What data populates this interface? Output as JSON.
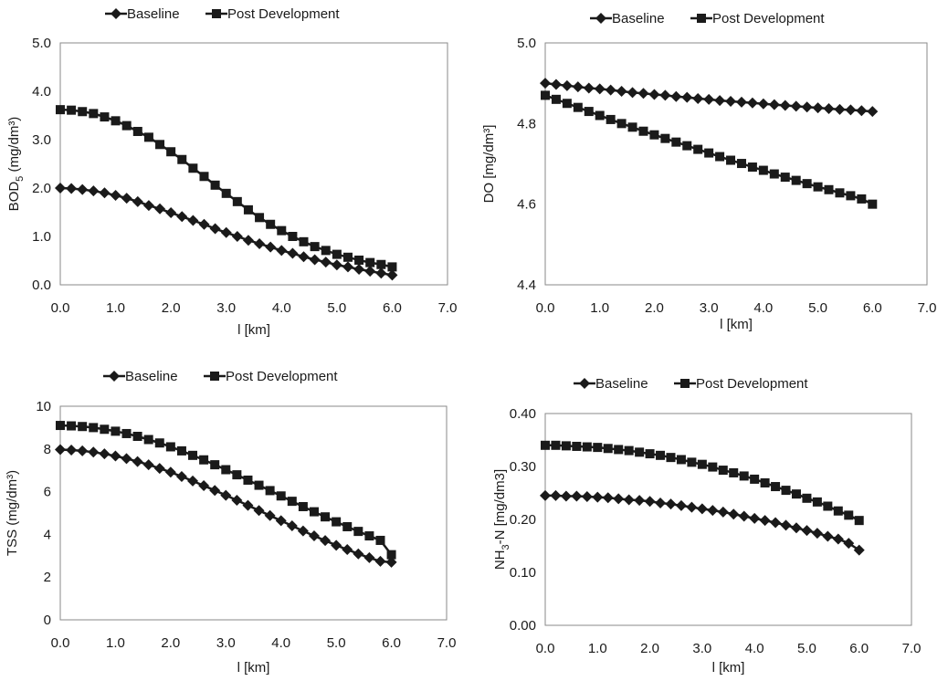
{
  "legend": {
    "baseline": "Baseline",
    "post": "Post Development"
  },
  "chart_data": [
    {
      "type": "line",
      "xlabel": "l [km]",
      "ylabel": "BOD5 (mg/dm³)",
      "ylabel_main": "BOD",
      "ylabel_sub": "5",
      "ylabel_rest": " (mg/dm³)",
      "xlim": [
        0,
        7
      ],
      "ylim": [
        0,
        5
      ],
      "xticks": [
        "0.0",
        "1.0",
        "2.0",
        "3.0",
        "4.0",
        "5.0",
        "6.0",
        "7.0"
      ],
      "yticks": [
        "0.0",
        "1.0",
        "2.0",
        "3.0",
        "4.0",
        "5.0"
      ],
      "series": [
        {
          "name": "Baseline",
          "marker": "diamond",
          "x": [
            0,
            0.2,
            0.4,
            0.6,
            0.8,
            1.0,
            1.2,
            1.4,
            1.6,
            1.8,
            2.0,
            2.2,
            2.4,
            2.6,
            2.8,
            3.0,
            3.2,
            3.4,
            3.6,
            3.8,
            4.0,
            4.2,
            4.4,
            4.6,
            4.8,
            5.0,
            5.2,
            5.4,
            5.6,
            5.8,
            6.0
          ],
          "y": [
            2.0,
            1.99,
            1.97,
            1.94,
            1.9,
            1.85,
            1.79,
            1.72,
            1.64,
            1.57,
            1.49,
            1.41,
            1.33,
            1.25,
            1.16,
            1.08,
            1.0,
            0.92,
            0.85,
            0.78,
            0.71,
            0.65,
            0.58,
            0.52,
            0.47,
            0.41,
            0.37,
            0.32,
            0.28,
            0.24,
            0.2
          ]
        },
        {
          "name": "Post Development",
          "marker": "square",
          "x": [
            0,
            0.2,
            0.4,
            0.6,
            0.8,
            1.0,
            1.2,
            1.4,
            1.6,
            1.8,
            2.0,
            2.2,
            2.4,
            2.6,
            2.8,
            3.0,
            3.2,
            3.4,
            3.6,
            3.8,
            4.0,
            4.2,
            4.4,
            4.6,
            4.8,
            5.0,
            5.2,
            5.4,
            5.6,
            5.8,
            6.0
          ],
          "y": [
            3.62,
            3.61,
            3.58,
            3.54,
            3.47,
            3.39,
            3.29,
            3.17,
            3.05,
            2.9,
            2.75,
            2.59,
            2.41,
            2.24,
            2.06,
            1.89,
            1.72,
            1.55,
            1.39,
            1.25,
            1.12,
            1.0,
            0.89,
            0.79,
            0.71,
            0.63,
            0.57,
            0.51,
            0.46,
            0.42,
            0.37
          ]
        }
      ]
    },
    {
      "type": "line",
      "xlabel": "l [km]",
      "ylabel": "DO [mg/dm³]",
      "ylabel_main": "DO [mg/dm³]",
      "ylabel_sub": "",
      "ylabel_rest": "",
      "xlim": [
        0,
        7
      ],
      "ylim": [
        4.4,
        5.0
      ],
      "xticks": [
        "0.0",
        "1.0",
        "2.0",
        "3.0",
        "4.0",
        "5.0",
        "6.0",
        "7.0"
      ],
      "yticks": [
        "4.4",
        "4.6",
        "4.8",
        "5.0"
      ],
      "series": [
        {
          "name": "Baseline",
          "marker": "diamond",
          "x": [
            0,
            0.2,
            0.4,
            0.6,
            0.8,
            1.0,
            1.2,
            1.4,
            1.6,
            1.8,
            2.0,
            2.2,
            2.4,
            2.6,
            2.8,
            3.0,
            3.2,
            3.4,
            3.6,
            3.8,
            4.0,
            4.2,
            4.4,
            4.6,
            4.8,
            5.0,
            5.2,
            5.4,
            5.6,
            5.8,
            6.0
          ],
          "y": [
            4.9,
            4.897,
            4.894,
            4.891,
            4.888,
            4.886,
            4.883,
            4.88,
            4.877,
            4.875,
            4.872,
            4.87,
            4.867,
            4.865,
            4.862,
            4.86,
            4.857,
            4.855,
            4.853,
            4.851,
            4.849,
            4.847,
            4.845,
            4.843,
            4.841,
            4.839,
            4.837,
            4.835,
            4.834,
            4.832,
            4.83
          ]
        },
        {
          "name": "Post Development",
          "marker": "square",
          "x": [
            0,
            0.2,
            0.4,
            0.6,
            0.8,
            1.0,
            1.2,
            1.4,
            1.6,
            1.8,
            2.0,
            2.2,
            2.4,
            2.6,
            2.8,
            3.0,
            3.2,
            3.4,
            3.6,
            3.8,
            4.0,
            4.2,
            4.4,
            4.6,
            4.8,
            5.0,
            5.2,
            5.4,
            5.6,
            5.8,
            6.0
          ],
          "y": [
            4.87,
            4.86,
            4.85,
            4.84,
            4.83,
            4.82,
            4.81,
            4.8,
            4.791,
            4.781,
            4.772,
            4.763,
            4.754,
            4.745,
            4.736,
            4.727,
            4.718,
            4.709,
            4.701,
            4.692,
            4.684,
            4.675,
            4.667,
            4.659,
            4.651,
            4.643,
            4.636,
            4.628,
            4.621,
            4.613,
            4.6
          ]
        }
      ]
    },
    {
      "type": "line",
      "xlabel": "l [km]",
      "ylabel": "TSS (mg/dm³)",
      "ylabel_main": "TSS (mg/dm³)",
      "ylabel_sub": "",
      "ylabel_rest": "",
      "xlim": [
        0,
        7
      ],
      "ylim": [
        0,
        10
      ],
      "xticks": [
        "0.0",
        "1.0",
        "2.0",
        "3.0",
        "4.0",
        "5.0",
        "6.0",
        "7.0"
      ],
      "yticks": [
        "0",
        "2",
        "4",
        "6",
        "8",
        "10"
      ],
      "series": [
        {
          "name": "Baseline",
          "marker": "diamond",
          "x": [
            0,
            0.2,
            0.4,
            0.6,
            0.8,
            1.0,
            1.2,
            1.4,
            1.6,
            1.8,
            2.0,
            2.2,
            2.4,
            2.6,
            2.8,
            3.0,
            3.2,
            3.4,
            3.6,
            3.8,
            4.0,
            4.2,
            4.4,
            4.6,
            4.8,
            5.0,
            5.2,
            5.4,
            5.6,
            5.8,
            6.0
          ],
          "y": [
            7.97,
            7.95,
            7.91,
            7.85,
            7.77,
            7.67,
            7.55,
            7.41,
            7.26,
            7.09,
            6.91,
            6.71,
            6.5,
            6.28,
            6.06,
            5.83,
            5.6,
            5.36,
            5.12,
            4.88,
            4.64,
            4.4,
            4.16,
            3.93,
            3.71,
            3.49,
            3.29,
            3.09,
            2.91,
            2.74,
            2.7
          ]
        },
        {
          "name": "Post Development",
          "marker": "square",
          "x": [
            0,
            0.2,
            0.4,
            0.6,
            0.8,
            1.0,
            1.2,
            1.4,
            1.6,
            1.8,
            2.0,
            2.2,
            2.4,
            2.6,
            2.8,
            3.0,
            3.2,
            3.4,
            3.6,
            3.8,
            4.0,
            4.2,
            4.4,
            4.6,
            4.8,
            5.0,
            5.2,
            5.4,
            5.6,
            5.8,
            6.0
          ],
          "y": [
            9.1,
            9.08,
            9.05,
            9.0,
            8.92,
            8.83,
            8.72,
            8.59,
            8.44,
            8.28,
            8.1,
            7.91,
            7.7,
            7.49,
            7.26,
            7.03,
            6.79,
            6.54,
            6.3,
            6.05,
            5.8,
            5.55,
            5.3,
            5.06,
            4.82,
            4.59,
            4.36,
            4.14,
            3.93,
            3.72,
            3.05
          ]
        }
      ]
    },
    {
      "type": "line",
      "xlabel": "l [km]",
      "ylabel": "NH3-N [mg/dm3]",
      "ylabel_main": "NH",
      "ylabel_sub": "3",
      "ylabel_rest": "-N [mg/dm3]",
      "xlim": [
        0,
        7
      ],
      "ylim": [
        0,
        0.4
      ],
      "xticks": [
        "0.0",
        "1.0",
        "2.0",
        "3.0",
        "4.0",
        "5.0",
        "6.0",
        "7.0"
      ],
      "yticks": [
        "0.00",
        "0.10",
        "0.20",
        "0.30",
        "0.40"
      ],
      "series": [
        {
          "name": "Baseline",
          "marker": "diamond",
          "x": [
            0,
            0.2,
            0.4,
            0.6,
            0.8,
            1.0,
            1.2,
            1.4,
            1.6,
            1.8,
            2.0,
            2.2,
            2.4,
            2.6,
            2.8,
            3.0,
            3.2,
            3.4,
            3.6,
            3.8,
            4.0,
            4.2,
            4.4,
            4.6,
            4.8,
            5.0,
            5.2,
            5.4,
            5.6,
            5.8,
            6.0
          ],
          "y": [
            0.245,
            0.245,
            0.244,
            0.244,
            0.243,
            0.242,
            0.241,
            0.239,
            0.237,
            0.236,
            0.234,
            0.231,
            0.229,
            0.226,
            0.223,
            0.22,
            0.217,
            0.214,
            0.21,
            0.206,
            0.202,
            0.198,
            0.194,
            0.189,
            0.184,
            0.179,
            0.174,
            0.168,
            0.163,
            0.155,
            0.142
          ]
        },
        {
          "name": "Post Development",
          "marker": "square",
          "x": [
            0,
            0.2,
            0.4,
            0.6,
            0.8,
            1.0,
            1.2,
            1.4,
            1.6,
            1.8,
            2.0,
            2.2,
            2.4,
            2.6,
            2.8,
            3.0,
            3.2,
            3.4,
            3.6,
            3.8,
            4.0,
            4.2,
            4.4,
            4.6,
            4.8,
            5.0,
            5.2,
            5.4,
            5.6,
            5.8,
            6.0
          ],
          "y": [
            0.34,
            0.34,
            0.339,
            0.338,
            0.337,
            0.336,
            0.334,
            0.332,
            0.33,
            0.327,
            0.324,
            0.321,
            0.317,
            0.313,
            0.308,
            0.304,
            0.299,
            0.293,
            0.288,
            0.282,
            0.276,
            0.269,
            0.262,
            0.255,
            0.248,
            0.24,
            0.233,
            0.225,
            0.216,
            0.208,
            0.198
          ]
        }
      ]
    }
  ]
}
